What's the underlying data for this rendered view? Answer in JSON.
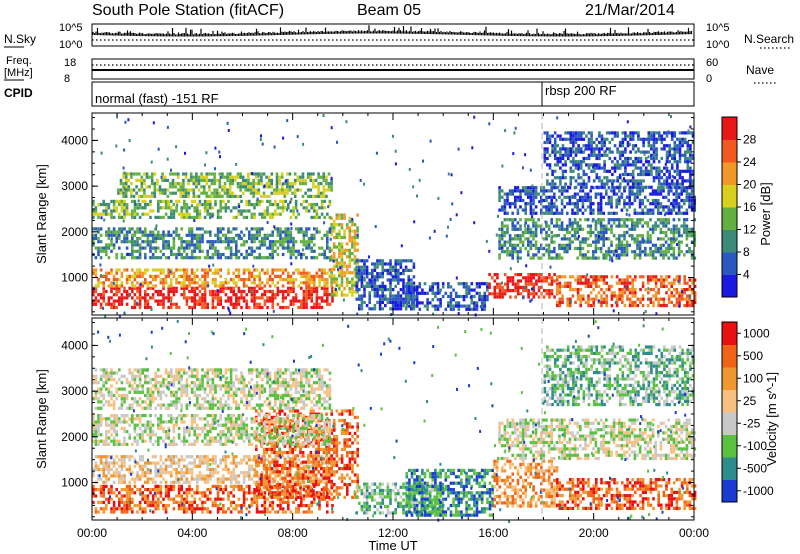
{
  "header": {
    "station": "South Pole Station (fitACF)",
    "beam": "Beam 05",
    "date": "21/Mar/2014"
  },
  "top_panels": {
    "nsky_label": "N.Sky",
    "nsearch_label": "N.Search",
    "freq_label_line1": "Freq.",
    "freq_label_line2": "[MHz]",
    "nave_label": "Nave",
    "cpid_label": "CPID",
    "nsky_ticks": [
      "10^5",
      "10^0"
    ],
    "nsearch_ticks": [
      "10^5",
      "10^0"
    ],
    "freq_ticks": [
      "18",
      "8"
    ],
    "nave_ticks": [
      "60",
      "0"
    ],
    "cpid_segments": [
      {
        "label": "normal (fast) -151 RF",
        "start_hour": 0
      },
      {
        "label": "rbsp 200 RF",
        "start_hour": 18
      }
    ]
  },
  "chart_data": [
    {
      "type": "heatmap",
      "title": "",
      "xlabel": "Time UT",
      "ylabel": "Slant Range [km]",
      "x_range_hours": [
        0,
        24
      ],
      "x_ticks": [
        "00:00",
        "04:00",
        "08:00",
        "12:00",
        "16:00",
        "20:00",
        "00:00"
      ],
      "y_range_km": [
        180,
        4600
      ],
      "y_ticks": [
        "1000",
        "2000",
        "3000",
        "4000"
      ],
      "colorbar": {
        "label": "Power [dB]",
        "tick_labels": [
          "4",
          "8",
          "12",
          "16",
          "20",
          "24",
          "28"
        ],
        "colors": [
          "#1a1ae0",
          "#2a58c0",
          "#3e8a78",
          "#62b040",
          "#d8d020",
          "#f09828",
          "#f05a20",
          "#e81818"
        ]
      },
      "echo_bands": [
        {
          "start_hour": 0,
          "end_hour": 9.6,
          "km_low": 350,
          "km_high": 800,
          "level": 7
        },
        {
          "start_hour": 0,
          "end_hour": 9.5,
          "km_low": 800,
          "km_high": 1200,
          "level": 5
        },
        {
          "start_hour": 9.5,
          "end_hour": 10.6,
          "km_low": 600,
          "km_high": 2400,
          "level": 4
        },
        {
          "start_hour": 10.5,
          "end_hour": 12.8,
          "km_low": 300,
          "km_high": 1400,
          "level": 1
        },
        {
          "start_hour": 12.5,
          "end_hour": 15.8,
          "km_low": 300,
          "km_high": 900,
          "level": 1
        },
        {
          "start_hour": 15.8,
          "end_hour": 18.5,
          "km_low": 600,
          "km_high": 1100,
          "level": 7
        },
        {
          "start_hour": 18.5,
          "end_hour": 24,
          "km_low": 400,
          "km_high": 1050,
          "level": 6
        },
        {
          "start_hour": 0,
          "end_hour": 9.5,
          "km_low": 1400,
          "km_high": 2100,
          "level": 2
        },
        {
          "start_hour": 0,
          "end_hour": 9.5,
          "km_low": 2300,
          "km_high": 2700,
          "level": 3
        },
        {
          "start_hour": 1,
          "end_hour": 9.5,
          "km_low": 2800,
          "km_high": 3300,
          "level": 3
        },
        {
          "start_hour": 16.2,
          "end_hour": 24,
          "km_low": 1400,
          "km_high": 2300,
          "level": 2
        },
        {
          "start_hour": 16.2,
          "end_hour": 24,
          "km_low": 2400,
          "km_high": 3000,
          "level": 1
        },
        {
          "start_hour": 18,
          "end_hour": 24,
          "km_low": 3000,
          "km_high": 4200,
          "level": 1
        }
      ]
    },
    {
      "type": "heatmap",
      "title": "",
      "xlabel": "Time UT",
      "ylabel": "Slant Range [km]",
      "x_range_hours": [
        0,
        24
      ],
      "x_ticks": [
        "00:00",
        "04:00",
        "08:00",
        "12:00",
        "16:00",
        "20:00",
        "00:00"
      ],
      "y_range_km": [
        180,
        4600
      ],
      "y_ticks": [
        "1000",
        "2000",
        "3000",
        "4000"
      ],
      "colorbar": {
        "label": "Velocity [m s^-1]",
        "tick_labels": [
          "1000",
          "500",
          "100",
          "25",
          "-25",
          "-100",
          "-500",
          "-1000"
        ],
        "colors": [
          "#1a3cd0",
          "#2e8c8c",
          "#5ac040",
          "#c8c8c8",
          "#f8c080",
          "#f09830",
          "#f06418",
          "#e81010"
        ]
      },
      "echo_bands": [
        {
          "start_hour": 0,
          "end_hour": 9.6,
          "km_low": 350,
          "km_high": 950,
          "level": 6
        },
        {
          "start_hour": 0,
          "end_hour": 9.5,
          "km_low": 1000,
          "km_high": 1600,
          "level": 4
        },
        {
          "start_hour": 6.5,
          "end_hour": 10.6,
          "km_low": 700,
          "km_high": 2600,
          "level": 6
        },
        {
          "start_hour": 10.5,
          "end_hour": 14,
          "km_low": 300,
          "km_high": 1000,
          "level": 2
        },
        {
          "start_hour": 12.5,
          "end_hour": 16,
          "km_low": 300,
          "km_high": 1300,
          "level": 1
        },
        {
          "start_hour": 16,
          "end_hour": 18.5,
          "km_low": 500,
          "km_high": 1500,
          "level": 5
        },
        {
          "start_hour": 18.5,
          "end_hour": 24,
          "km_low": 400,
          "km_high": 1100,
          "level": 6
        },
        {
          "start_hour": 0,
          "end_hour": 9.5,
          "km_low": 1800,
          "km_high": 2500,
          "level": 3
        },
        {
          "start_hour": 0,
          "end_hour": 9.5,
          "km_low": 2600,
          "km_high": 3500,
          "level": 3
        },
        {
          "start_hour": 16.2,
          "end_hour": 24,
          "km_low": 1500,
          "km_high": 2400,
          "level": 3
        },
        {
          "start_hour": 18,
          "end_hour": 24,
          "km_low": 2700,
          "km_high": 4000,
          "level": 2
        }
      ]
    }
  ]
}
